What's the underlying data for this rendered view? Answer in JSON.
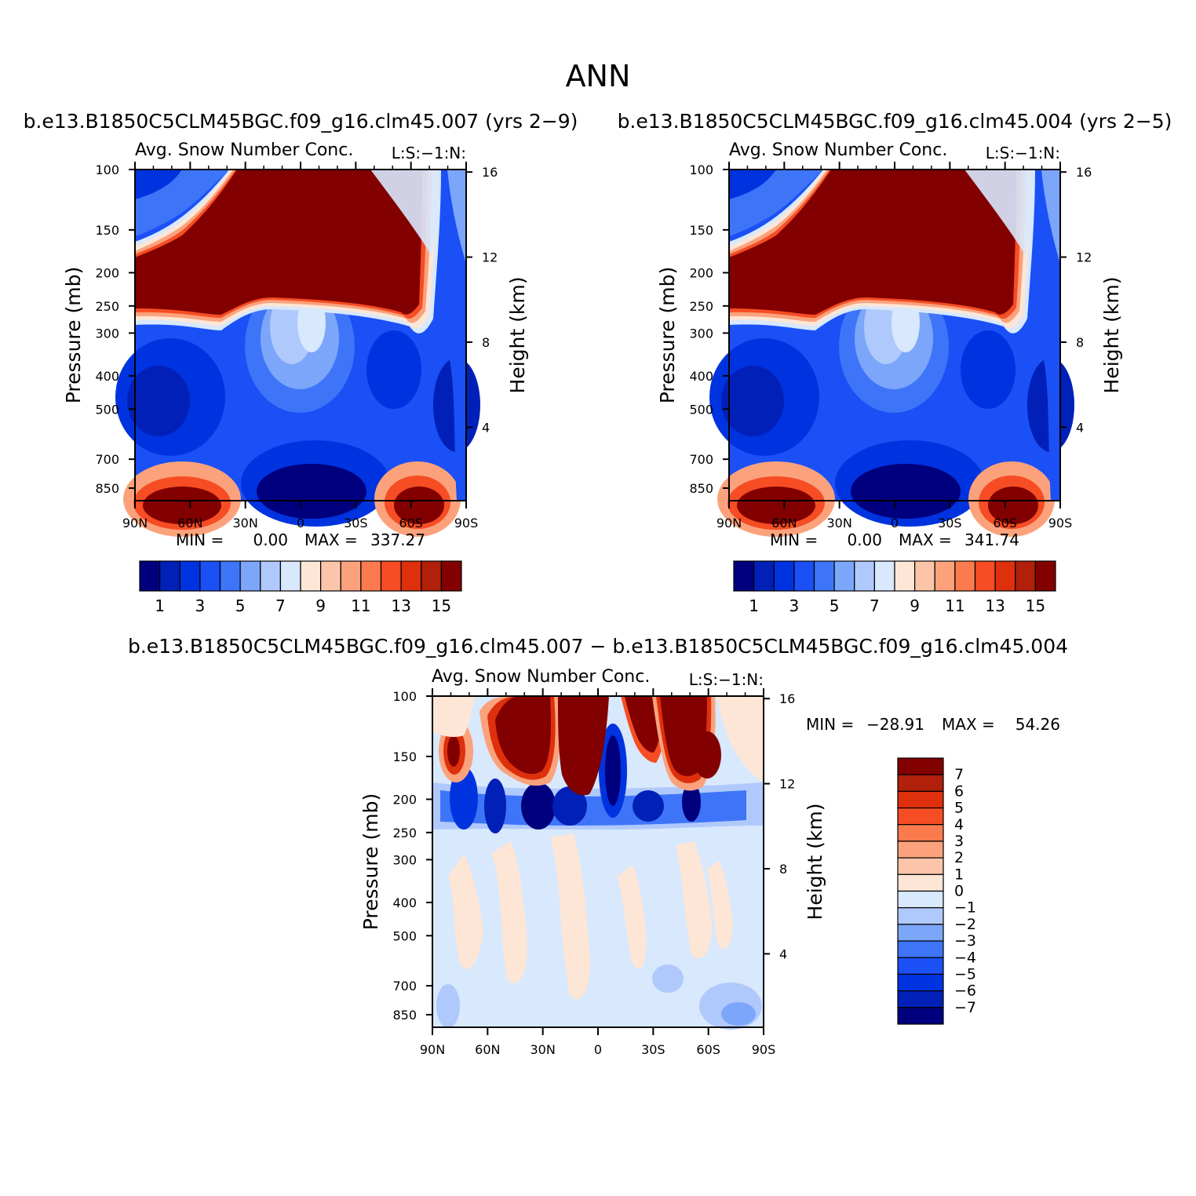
{
  "title": "ANN",
  "panels": [
    {
      "id": "top-left",
      "case_title": "b.e13.B1850C5CLM45BGC.f09_g16.clm45.007 (yrs 2−9)",
      "field_label": "Avg. Snow Number Conc.",
      "units_label": "L:S:−1:N:",
      "min_label": "MIN =",
      "min_value": "0.00",
      "max_label": "MAX =",
      "max_value": "337.27"
    },
    {
      "id": "top-right",
      "case_title": "b.e13.B1850C5CLM45BGC.f09_g16.clm45.004 (yrs 2−5)",
      "field_label": "Avg. Snow Number Conc.",
      "units_label": "L:S:−1:N:",
      "min_label": "MIN =",
      "min_value": "0.00",
      "max_label": "MAX =",
      "max_value": "341.74"
    },
    {
      "id": "bottom",
      "case_title": "b.e13.B1850C5CLM45BGC.f09_g16.clm45.007 − b.e13.B1850C5CLM45BGC.f09_g16.clm45.004",
      "field_label": "Avg. Snow Number Conc.",
      "units_label": "L:S:−1:N:",
      "min_label": "MIN =",
      "min_value": "−28.91",
      "max_label": "MAX =",
      "max_value": "54.26"
    }
  ],
  "axes": {
    "ylabel": "Pressure (mb)",
    "y2label": "Height (km)",
    "pressure_ticks": [
      100,
      150,
      200,
      250,
      300,
      400,
      500,
      700,
      850
    ],
    "height_ticks": [
      16,
      12,
      8,
      4
    ],
    "lat_ticks": [
      "90N",
      "60N",
      "30N",
      "0",
      "30S",
      "60S",
      "90S"
    ]
  },
  "colorbars": {
    "abs_colors": [
      "#00007f",
      "#0020b8",
      "#0033e0",
      "#1a50f5",
      "#3e75f8",
      "#7ca6fa",
      "#b0c9fc",
      "#d8e8fd",
      "#fde6d6",
      "#fcc5a9",
      "#fba27c",
      "#fb7b4e",
      "#f64d24",
      "#de300d",
      "#b0200a",
      "#820000"
    ],
    "abs_labels": [
      "1",
      "3",
      "5",
      "7",
      "9",
      "11",
      "13",
      "15"
    ],
    "diff_colors": [
      "#820000",
      "#b0200a",
      "#de300d",
      "#f64d24",
      "#fb7b4e",
      "#fba27c",
      "#fcc5a9",
      "#fde6d6",
      "#d8e8fd",
      "#b0c9fc",
      "#7ca6fa",
      "#3e75f8",
      "#1a50f5",
      "#0033e0",
      "#0020b8",
      "#00007f"
    ],
    "diff_labels": [
      "7",
      "6",
      "5",
      "4",
      "3",
      "2",
      "1",
      "0",
      "−1",
      "−2",
      "−3",
      "−4",
      "−5",
      "−6",
      "−7"
    ]
  },
  "chart_data": [
    {
      "type": "heatmap",
      "title": "b.e13.B1850C5CLM45BGC.f09_g16.clm45.007 (yrs 2−9)",
      "subtitle": "Avg. Snow Number Conc.",
      "x": [
        "90N",
        "60N",
        "30N",
        "0",
        "30S",
        "60S",
        "90S"
      ],
      "xlim": [
        90,
        -90
      ],
      "y_pressure_mb": [
        100,
        150,
        200,
        250,
        300,
        400,
        500,
        700,
        850
      ],
      "ylim_mb": [
        100,
        925
      ],
      "y2_height_km": [
        16,
        12,
        8,
        4
      ],
      "contour_levels": [
        1,
        2,
        3,
        4,
        5,
        6,
        7,
        8,
        9,
        10,
        11,
        12,
        13,
        14,
        15
      ],
      "min": 0.0,
      "max": 337.27
    },
    {
      "type": "heatmap",
      "title": "b.e13.B1850C5CLM45BGC.f09_g16.clm45.004 (yrs 2−5)",
      "subtitle": "Avg. Snow Number Conc.",
      "x": [
        "90N",
        "60N",
        "30N",
        "0",
        "30S",
        "60S",
        "90S"
      ],
      "xlim": [
        90,
        -90
      ],
      "y_pressure_mb": [
        100,
        150,
        200,
        250,
        300,
        400,
        500,
        700,
        850
      ],
      "ylim_mb": [
        100,
        925
      ],
      "y2_height_km": [
        16,
        12,
        8,
        4
      ],
      "contour_levels": [
        1,
        2,
        3,
        4,
        5,
        6,
        7,
        8,
        9,
        10,
        11,
        12,
        13,
        14,
        15
      ],
      "min": 0.0,
      "max": 341.74
    },
    {
      "type": "heatmap",
      "title": "b.e13.B1850C5CLM45BGC.f09_g16.clm45.007 − b.e13.B1850C5CLM45BGC.f09_g16.clm45.004",
      "subtitle": "Avg. Snow Number Conc.",
      "x": [
        "90N",
        "60N",
        "30N",
        "0",
        "30S",
        "60S",
        "90S"
      ],
      "xlim": [
        90,
        -90
      ],
      "y_pressure_mb": [
        100,
        150,
        200,
        250,
        300,
        400,
        500,
        700,
        850
      ],
      "ylim_mb": [
        100,
        925
      ],
      "y2_height_km": [
        16,
        12,
        8,
        4
      ],
      "contour_levels": [
        -7,
        -6,
        -5,
        -4,
        -3,
        -2,
        -1,
        0,
        1,
        2,
        3,
        4,
        5,
        6,
        7
      ],
      "min": -28.91,
      "max": 54.26
    }
  ]
}
